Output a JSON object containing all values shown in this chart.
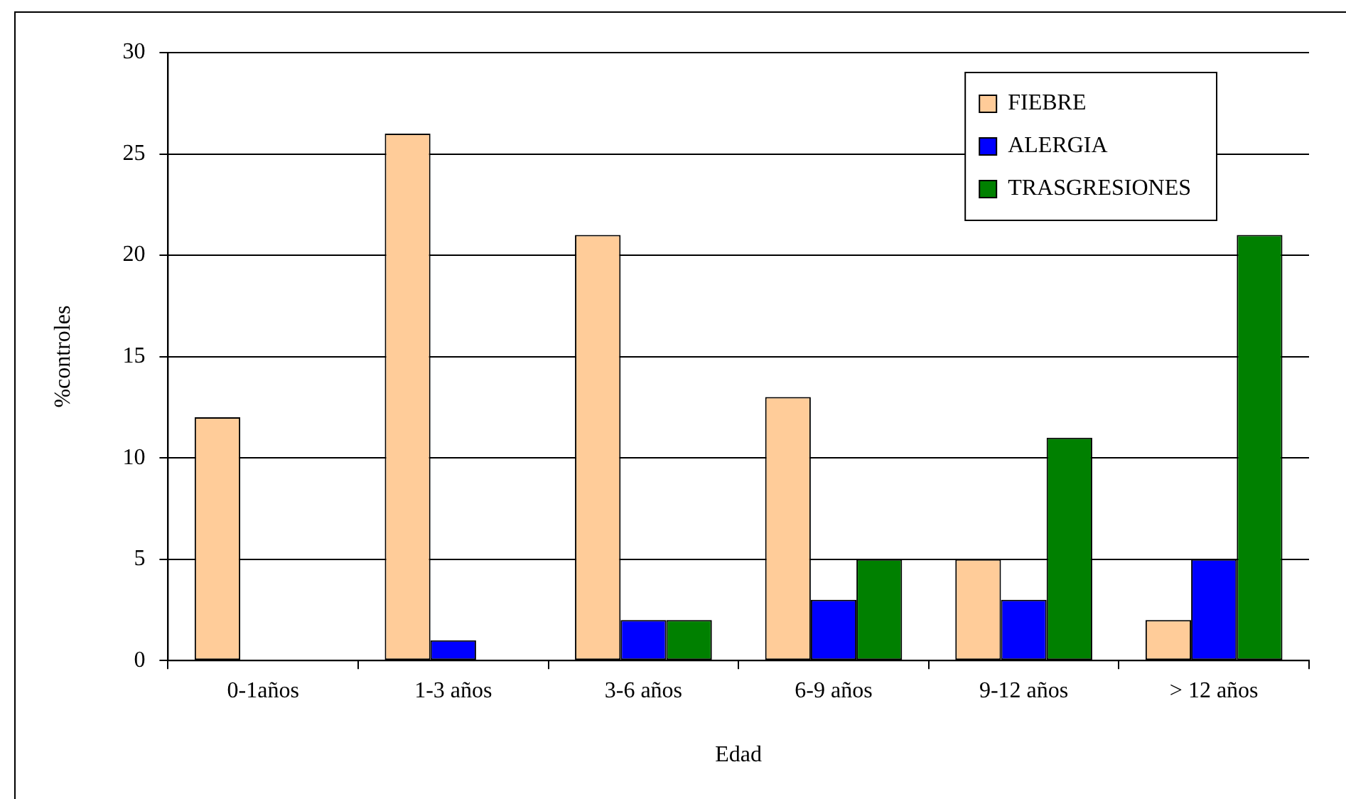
{
  "chart_data": {
    "type": "bar",
    "xlabel": "Edad",
    "ylabel": "%controles",
    "categories": [
      "0-1años",
      "1-3 años",
      "3-6 años",
      "6-9 años",
      "9-12 años",
      "> 12 años"
    ],
    "series": [
      {
        "name": "FIEBRE",
        "color": "#ffcc99",
        "values": [
          12,
          26,
          21,
          13,
          5,
          2
        ]
      },
      {
        "name": "ALERGIA",
        "color": "#0000ff",
        "values": [
          0,
          1,
          2,
          3,
          3,
          5
        ]
      },
      {
        "name": "TRASGRESIONES",
        "color": "#008000",
        "values": [
          0,
          0,
          2,
          5,
          11,
          21
        ]
      }
    ],
    "ylim": [
      0,
      30
    ],
    "yticks": [
      0,
      5,
      10,
      15,
      20,
      25,
      30
    ],
    "grid": "y",
    "legend": "top right"
  }
}
